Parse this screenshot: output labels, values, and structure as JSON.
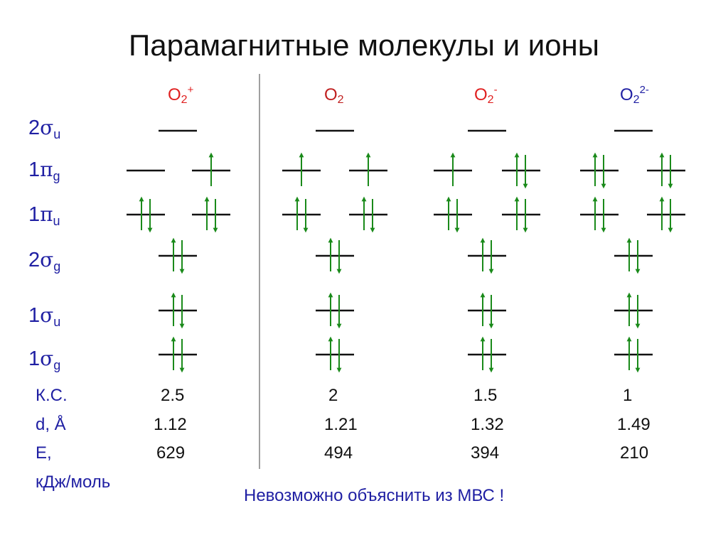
{
  "title": "Парамагнитные молекулы и ионы",
  "colors": {
    "species": "#e02020",
    "species_neutral": "#c02020",
    "species_dianion": "#1f1fa3",
    "labels": "#1f1fa3",
    "arrows": "#1a8a1a",
    "levels": "#111111",
    "divider": "#888888"
  },
  "species": [
    {
      "base": "O",
      "sub": "2",
      "sup": "+",
      "color": "#e02020"
    },
    {
      "base": "O",
      "sub": "2",
      "sup": "",
      "color": "#c02020"
    },
    {
      "base": "O",
      "sub": "2",
      "sup": "-",
      "color": "#e02020"
    },
    {
      "base": "O",
      "sub": "2",
      "sup": "2-",
      "color": "#1f1fa3"
    }
  ],
  "orbitals": [
    {
      "num": "2",
      "greek": "σ",
      "sub": "u"
    },
    {
      "num": "1",
      "greek": "π",
      "sub": "g"
    },
    {
      "num": "1",
      "greek": "π",
      "sub": "u"
    },
    {
      "num": "2",
      "greek": "σ",
      "sub": "g"
    },
    {
      "num": "1",
      "greek": "σ",
      "sub": "u"
    },
    {
      "num": "1",
      "greek": "σ",
      "sub": "g"
    }
  ],
  "occupancy": [
    {
      "s2u": 0,
      "p1g": [
        0,
        1
      ],
      "p1u": [
        2,
        2
      ],
      "s2g": 2,
      "s1u": 2,
      "s1g": 2
    },
    {
      "s2u": 0,
      "p1g": [
        1,
        1
      ],
      "p1u": [
        2,
        2
      ],
      "s2g": 2,
      "s1u": 2,
      "s1g": 2
    },
    {
      "s2u": 0,
      "p1g": [
        1,
        2
      ],
      "p1u": [
        2,
        2
      ],
      "s2g": 2,
      "s1u": 2,
      "s1g": 2
    },
    {
      "s2u": 0,
      "p1g": [
        2,
        2
      ],
      "p1u": [
        2,
        2
      ],
      "s2g": 2,
      "s1u": 2,
      "s1g": 2
    }
  ],
  "row_labels": {
    "bond_order": "К.С.",
    "distance": "d, Å",
    "energy_line1": "E,",
    "energy_line2": "кДж/моль"
  },
  "bond_order": [
    "2.5",
    "2",
    "1.5",
    "1"
  ],
  "distance": [
    "1.12",
    "1.21",
    "1.32",
    "1.49"
  ],
  "energy": [
    "629",
    "494",
    "394",
    "210"
  ],
  "footer": "Невозможно объяснить из МВС !"
}
